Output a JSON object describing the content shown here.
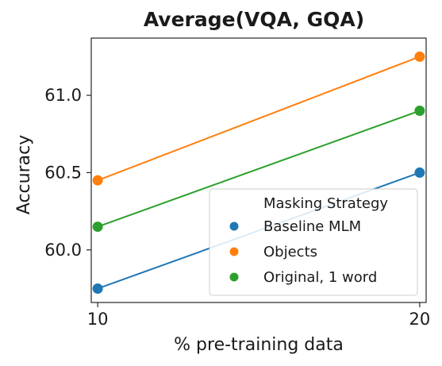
{
  "chart_data": {
    "type": "line",
    "title": "Average(VQA, GQA)",
    "xlabel": "% pre-training data",
    "ylabel": "Accuracy",
    "x": [
      10,
      20
    ],
    "xticks": [
      10,
      20
    ],
    "xtick_labels": [
      "10",
      "20"
    ],
    "yticks": [
      60.0,
      60.5,
      61.0
    ],
    "ytick_labels": [
      "60.0",
      "60.5",
      "61.0"
    ],
    "xlim": [
      9.8,
      20.2
    ],
    "ylim": [
      59.66,
      61.37
    ],
    "grid": false,
    "legend": {
      "title": "Masking Strategy",
      "placement": "lower-right"
    },
    "series": [
      {
        "name": "Baseline MLM",
        "color": "#1f77b4",
        "values": [
          59.75,
          60.5
        ]
      },
      {
        "name": "Objects",
        "color": "#ff7f0e",
        "values": [
          60.45,
          61.25
        ]
      },
      {
        "name": "Original, 1 word",
        "color": "#2ca02c",
        "values": [
          60.15,
          60.9
        ]
      }
    ]
  }
}
